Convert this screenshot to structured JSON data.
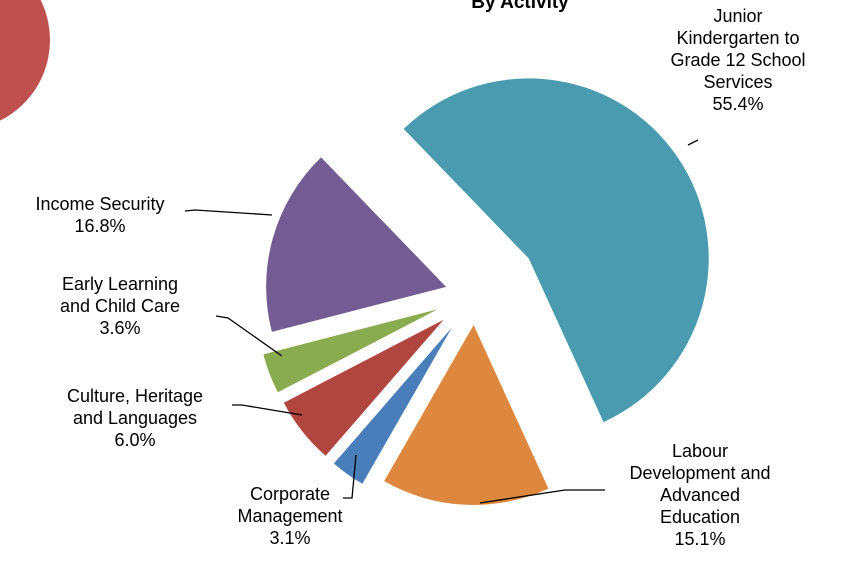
{
  "chart_data": {
    "type": "pie",
    "title": "By Activity",
    "categories": [
      "Junior Kindergarten to Grade 12 School Services",
      "Labour Development and Advanced Education",
      "Corporate Management",
      "Culture, Heritage and Languages",
      "Early Learning and Child Care",
      "Income Security"
    ],
    "values": [
      55.4,
      15.1,
      3.1,
      6.0,
      3.6,
      16.8
    ],
    "value_labels": [
      "55.4%",
      "15.1%",
      "3.1%",
      "6.0%",
      "3.6%",
      "16.8%"
    ],
    "colors": [
      "#4a9bb0",
      "#dd883e",
      "#4a7ebb",
      "#b0463f",
      "#8aab4f",
      "#735b93"
    ]
  }
}
